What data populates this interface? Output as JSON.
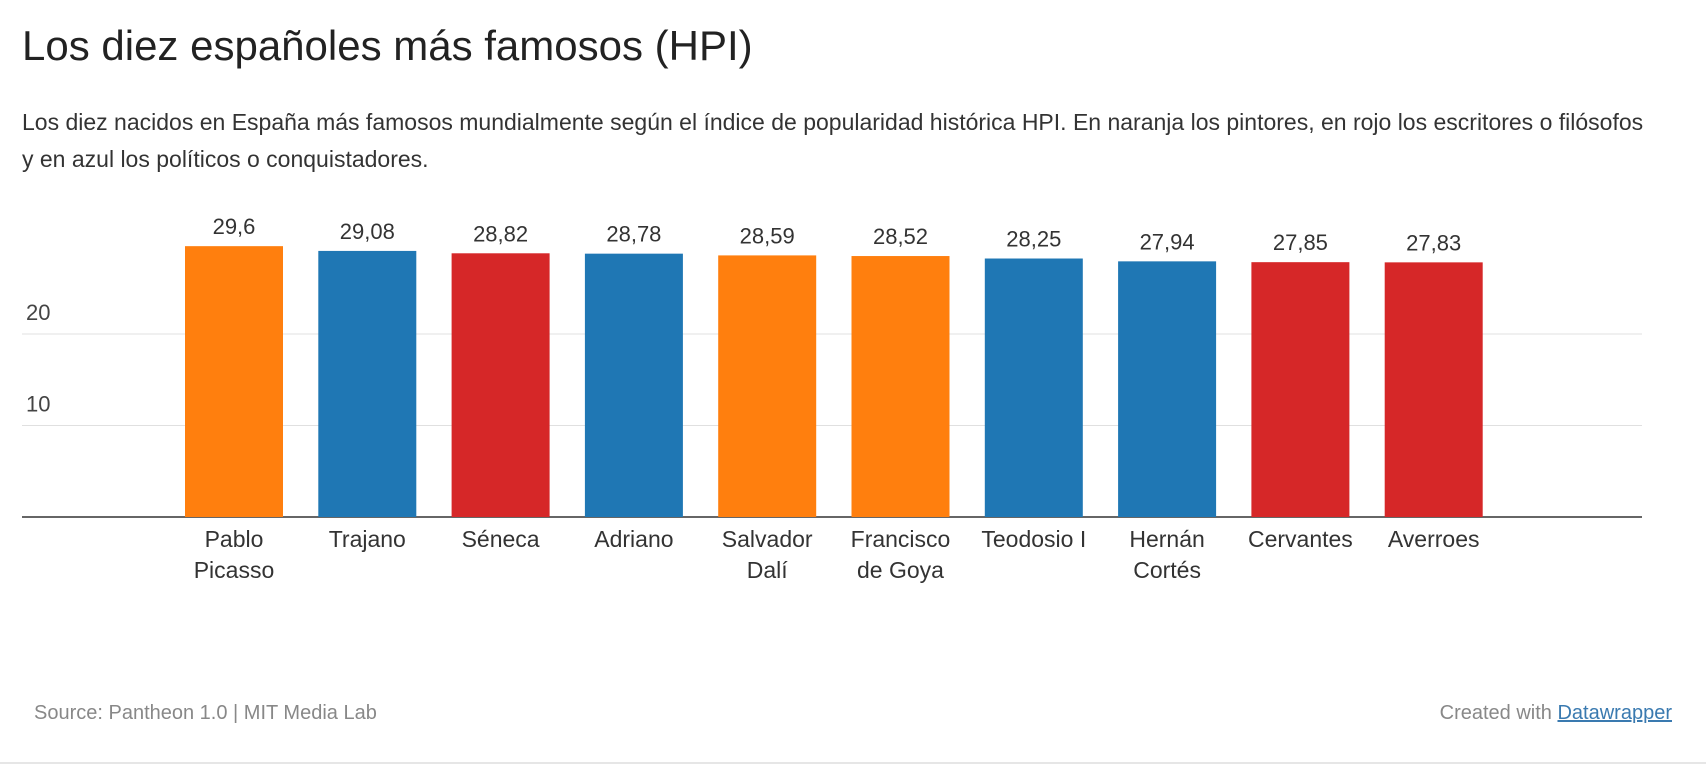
{
  "header": {
    "title": "Los diez españoles más famosos (HPI)",
    "subtitle": "Los diez nacidos en España más famosos mundialmente según el índice de popularidad histórica HPI. En naranja los pintores, en rojo los escritores o filósofos y en azul los políticos o conquistadores."
  },
  "footer": {
    "source": "Source: Pantheon 1.0 | MIT Media Lab",
    "created_prefix": "Created with",
    "created_link": "Datawrapper"
  },
  "colors": {
    "pintor": "#ff7f0e",
    "escritor": "#d62728",
    "politico": "#1f77b4"
  },
  "chart_data": {
    "type": "bar",
    "title": "Los diez españoles más famosos (HPI)",
    "xlabel": "",
    "ylabel": "",
    "ylim": [
      0,
      30
    ],
    "yticks": [
      10,
      20
    ],
    "grid": true,
    "categories": [
      [
        "Pablo",
        "Picasso"
      ],
      [
        "Trajano"
      ],
      [
        "Séneca"
      ],
      [
        "Adriano"
      ],
      [
        "Salvador",
        "Dalí"
      ],
      [
        "Francisco",
        "de Goya"
      ],
      [
        "Teodosio I"
      ],
      [
        "Hernán",
        "Cortés"
      ],
      [
        "Cervantes"
      ],
      [
        "Averroes"
      ]
    ],
    "values": [
      29.6,
      29.08,
      28.82,
      28.78,
      28.59,
      28.52,
      28.25,
      27.94,
      27.85,
      27.83
    ],
    "value_labels": [
      "29,6",
      "29,08",
      "28,82",
      "28,78",
      "28,59",
      "28,52",
      "28,25",
      "27,94",
      "27,85",
      "27,83"
    ],
    "bar_colors": [
      "#ff7f0e",
      "#1f77b4",
      "#d62728",
      "#1f77b4",
      "#ff7f0e",
      "#ff7f0e",
      "#1f77b4",
      "#1f77b4",
      "#d62728",
      "#d62728"
    ]
  }
}
